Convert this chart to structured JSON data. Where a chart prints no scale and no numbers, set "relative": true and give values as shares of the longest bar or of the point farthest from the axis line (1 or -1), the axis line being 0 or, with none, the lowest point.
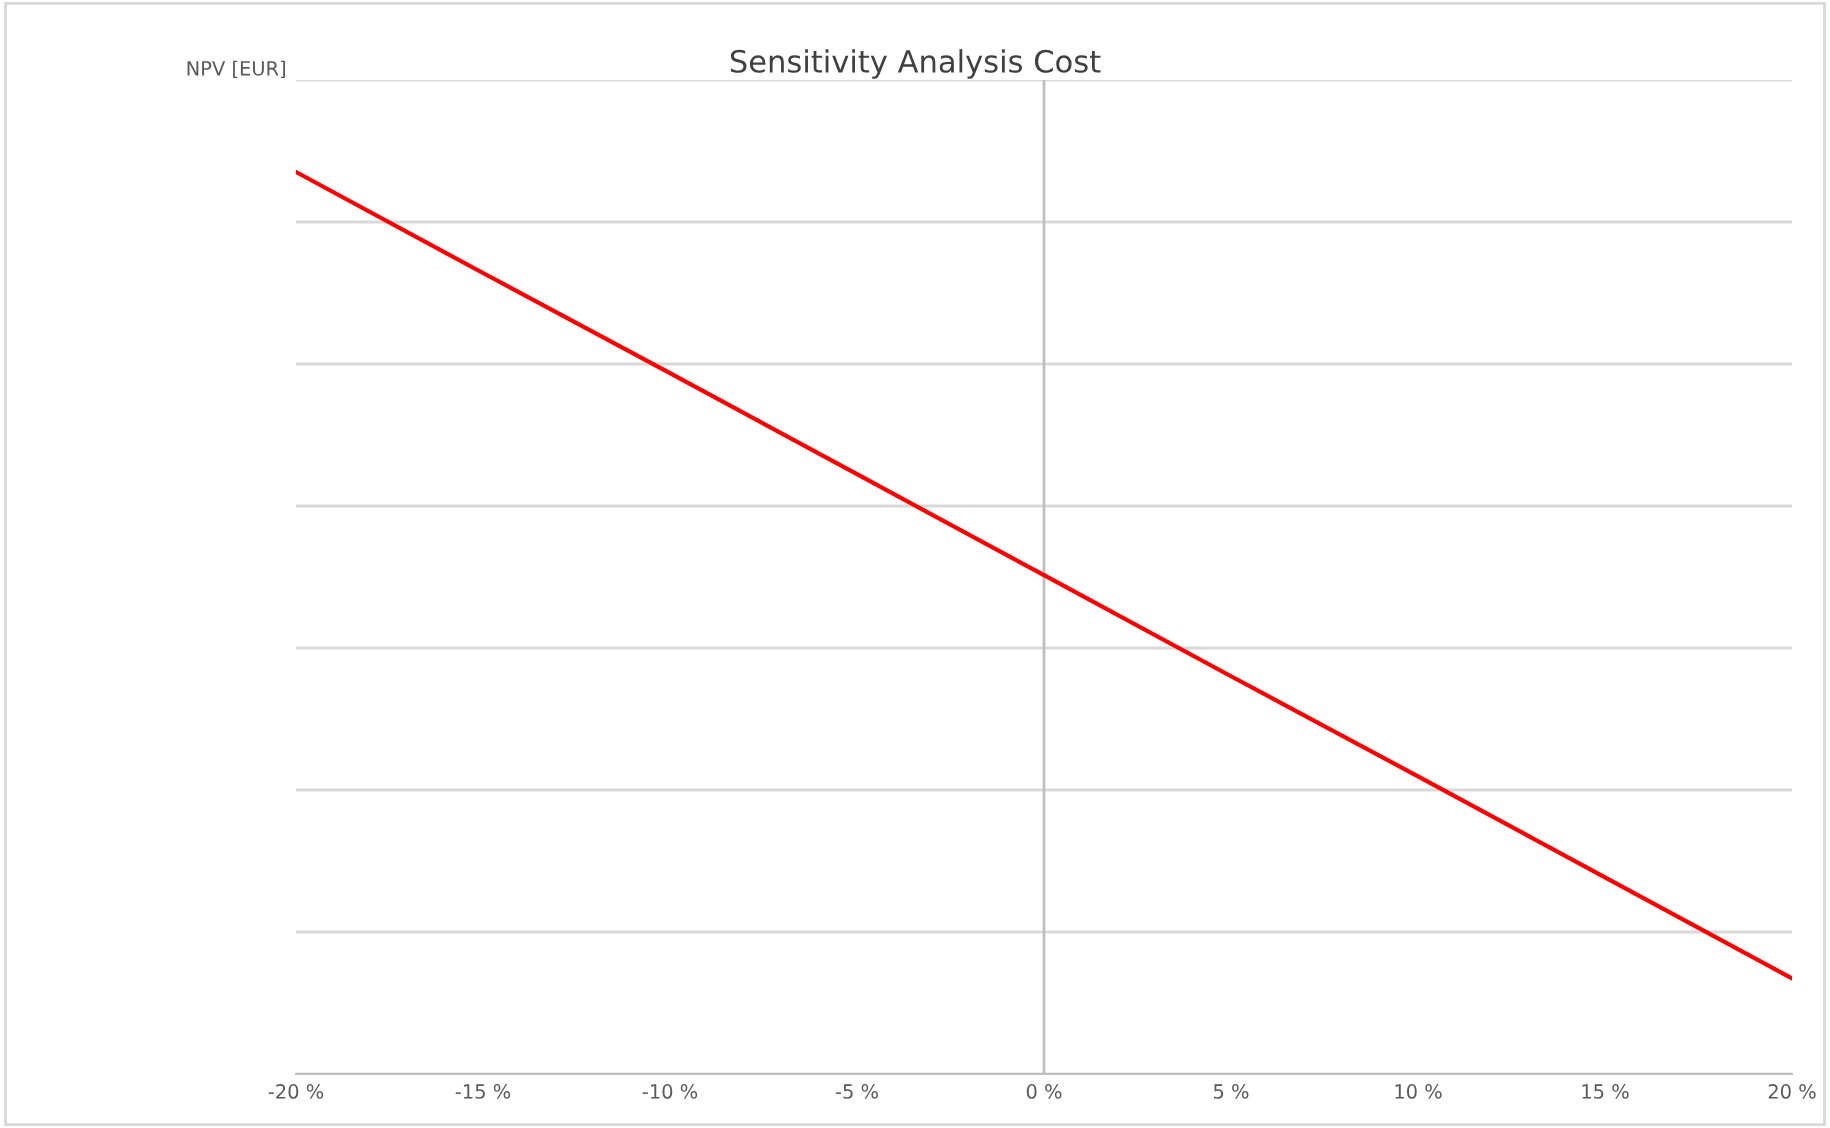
{
  "chart_data": {
    "type": "line",
    "title": "Sensitivity Analysis Cost",
    "ylabel": "NPV [EUR]",
    "relative": true,
    "x": [
      -20,
      -15,
      -10,
      -5,
      0,
      5,
      10,
      15,
      20
    ],
    "series": [
      {
        "color": "#ff0000",
        "values": [
          1,
          0.888,
          0.777,
          0.665,
          0.553,
          0.441,
          0.33,
          0.218,
          0.106
        ]
      }
    ],
    "xlim": [
      -20,
      20
    ],
    "xticks": [
      {
        "value": -20,
        "label": "-20 %"
      },
      {
        "value": -15,
        "label": "-15 %"
      },
      {
        "value": -10,
        "label": "-10 %"
      },
      {
        "value": -5,
        "label": "-5 %"
      },
      {
        "value": 0,
        "label": "0 %"
      },
      {
        "value": 5,
        "label": "5 %"
      },
      {
        "value": 10,
        "label": "10 %"
      },
      {
        "value": 15,
        "label": "15 %"
      },
      {
        "value": 20,
        "label": "20 %"
      }
    ],
    "ref_lines": [
      {
        "axis": "x",
        "value": 0,
        "color": "#bfbfbf"
      }
    ],
    "grid": "y",
    "tick_labels": "x",
    "legend": false,
    "marker": "none",
    "line_style": "solid"
  }
}
